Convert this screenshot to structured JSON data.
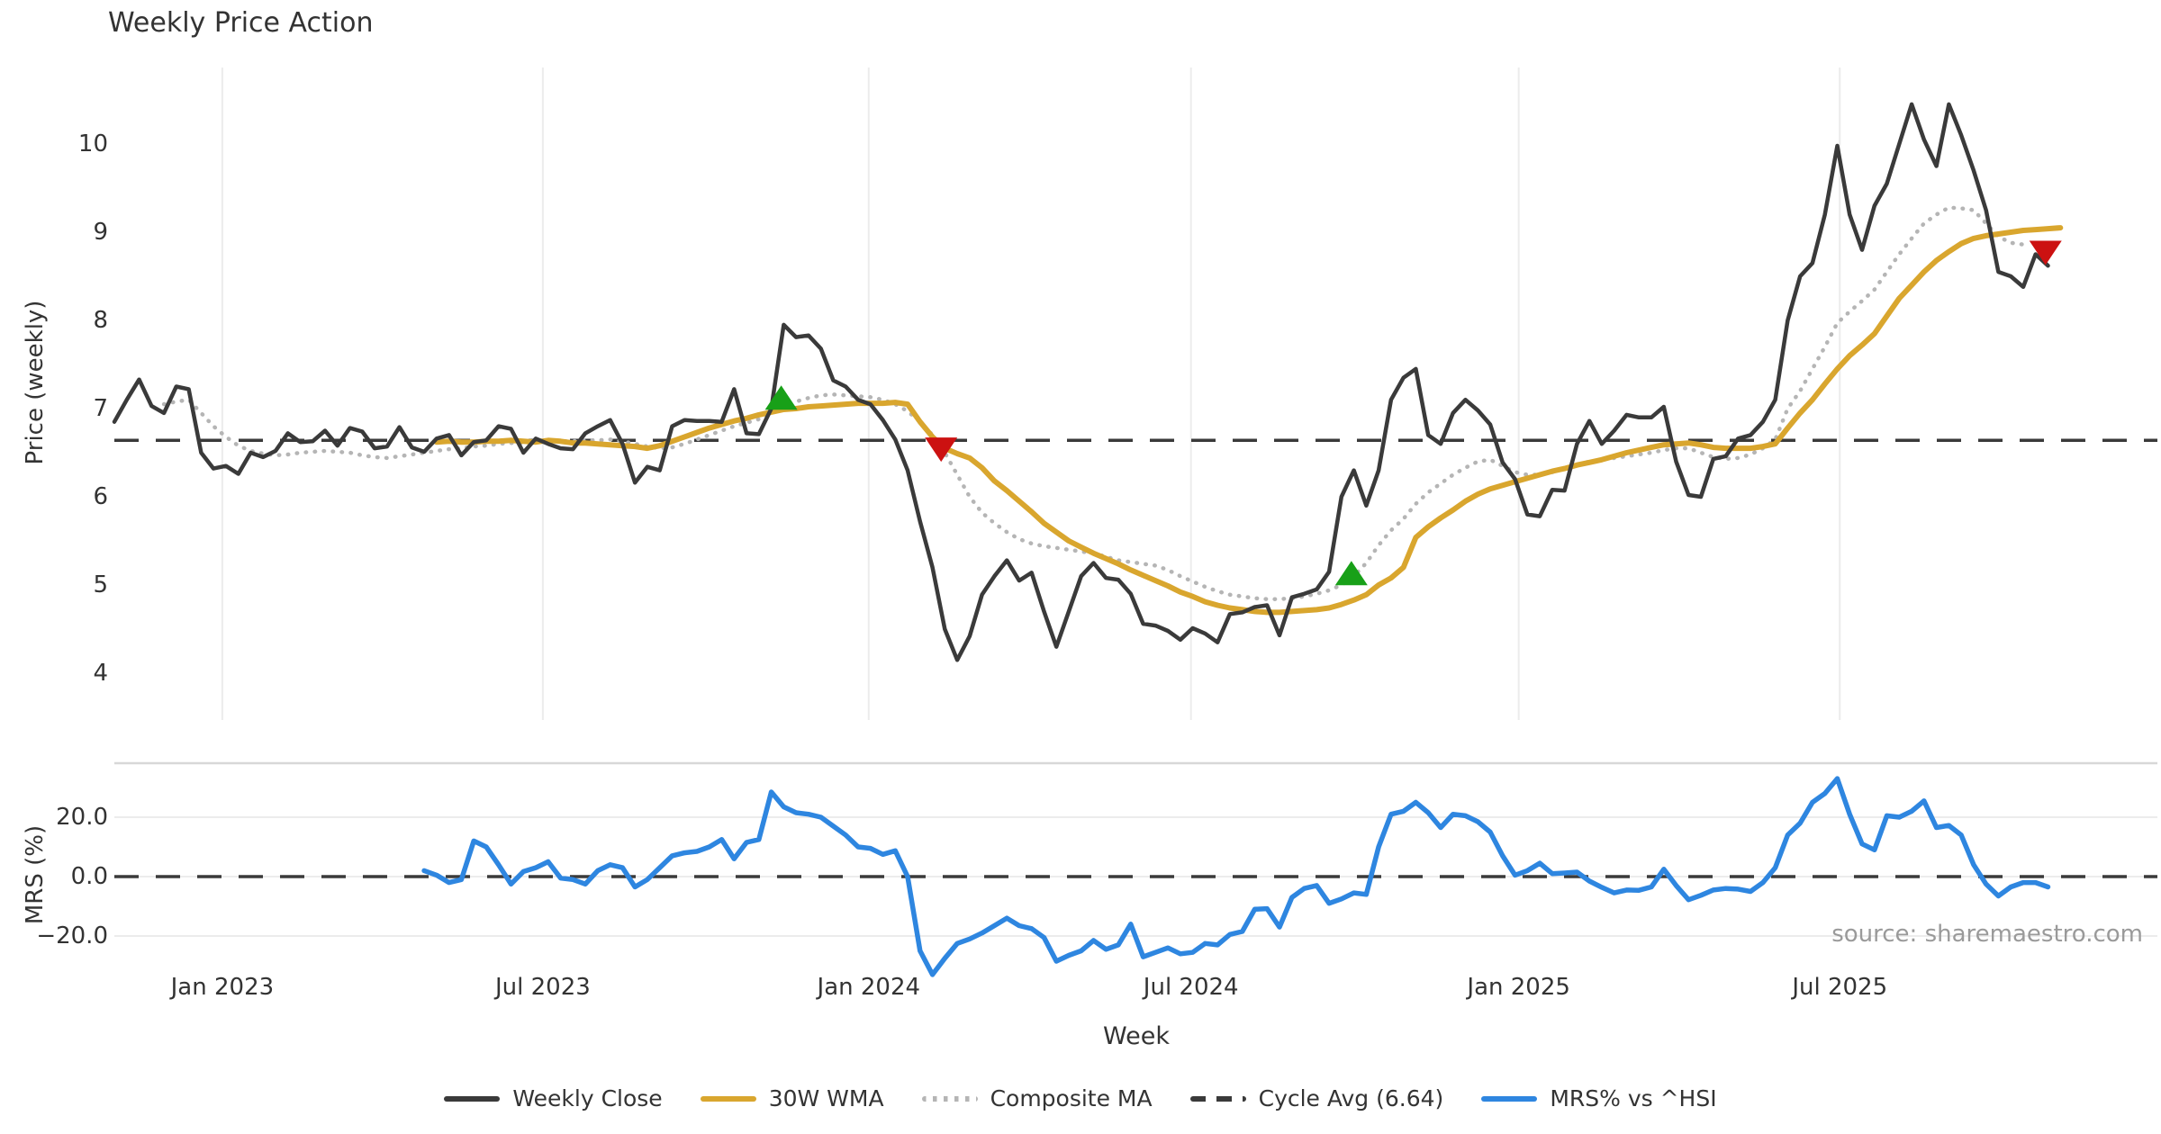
{
  "title": "Weekly Price Action",
  "source": "source: sharemaestro.com",
  "colors": {
    "close": "#3a3a3a",
    "wma": "#d9a62e",
    "composite": "#b5b5b5",
    "mrs": "#2e86e0",
    "buy": "#18a018",
    "sell": "#cc1111",
    "grid": "#ececec",
    "spine": "#d8d8d8",
    "text": "#333333",
    "muted": "#9a9a9a"
  },
  "legend": {
    "items": [
      {
        "label": "Weekly Close",
        "style": "solid",
        "color": "#3a3a3a"
      },
      {
        "label": "30W WMA",
        "style": "solid",
        "color": "#d9a62e"
      },
      {
        "label": "Composite MA",
        "style": "dotted",
        "color": "#b5b5b5"
      },
      {
        "label": "Cycle Avg (6.64)",
        "style": "dashed",
        "color": "#3a3a3a"
      },
      {
        "label": "MRS% vs ^HSI",
        "style": "solid",
        "color": "#2e86e0"
      }
    ]
  },
  "xaxis": {
    "label": "Week",
    "ticks": [
      "Jan 2023",
      "Jul 2023",
      "Jan 2024",
      "Jul 2024",
      "Jan 2025",
      "Jul 2025"
    ],
    "tick_weeks": [
      8.71,
      34.57,
      60.86,
      86.86,
      113.3,
      139.2
    ]
  },
  "chart_data": [
    {
      "type": "line",
      "panel": "price",
      "ylabel": "Price (weekly)",
      "yticks": [
        "4",
        "5",
        "6",
        "7",
        "8",
        "9",
        "10"
      ],
      "ytick_values": [
        4,
        5,
        6,
        7,
        8,
        9,
        10
      ],
      "ylim": [
        3.5,
        10.9
      ],
      "grid": "vertical",
      "cycle_avg": 6.64,
      "series": [
        {
          "name": "Weekly Close",
          "color": "#3a3a3a",
          "style": "solid",
          "width": 4.5,
          "start_week": 0,
          "values": [
            6.85,
            7.1,
            7.33,
            7.03,
            6.95,
            7.25,
            7.22,
            6.5,
            6.32,
            6.35,
            6.26,
            6.5,
            6.45,
            6.52,
            6.72,
            6.62,
            6.63,
            6.75,
            6.58,
            6.78,
            6.74,
            6.55,
            6.57,
            6.79,
            6.56,
            6.51,
            6.66,
            6.7,
            6.47,
            6.62,
            6.64,
            6.8,
            6.77,
            6.5,
            6.66,
            6.6,
            6.55,
            6.54,
            6.72,
            6.8,
            6.87,
            6.6,
            6.16,
            6.34,
            6.3,
            6.8,
            6.87,
            6.86,
            6.86,
            6.85,
            7.22,
            6.72,
            6.71,
            7.0,
            7.95,
            7.81,
            7.83,
            7.68,
            7.32,
            7.25,
            7.1,
            7.05,
            6.87,
            6.65,
            6.3,
            5.72,
            5.2,
            4.5,
            4.15,
            4.42,
            4.89,
            5.1,
            5.28,
            5.05,
            5.14,
            4.7,
            4.3,
            4.7,
            5.1,
            5.25,
            5.08,
            5.06,
            4.9,
            4.56,
            4.54,
            4.48,
            4.38,
            4.51,
            4.45,
            4.35,
            4.67,
            4.69,
            4.75,
            4.77,
            4.43,
            4.86,
            4.9,
            4.95,
            5.15,
            6.0,
            6.3,
            5.9,
            6.3,
            7.1,
            7.35,
            7.45,
            6.7,
            6.6,
            6.95,
            7.1,
            6.98,
            6.82,
            6.39,
            6.2,
            5.8,
            5.78,
            6.08,
            6.07,
            6.6,
            6.86,
            6.6,
            6.75,
            6.93,
            6.9,
            6.9,
            7.02,
            6.4,
            6.02,
            6.0,
            6.43,
            6.46,
            6.66,
            6.7,
            6.85,
            7.1,
            8.0,
            8.5,
            8.65,
            9.2,
            9.98,
            9.2,
            8.8,
            9.3,
            9.55,
            10.0,
            10.45,
            10.05,
            9.75,
            10.45,
            10.1,
            9.7,
            9.25,
            8.55,
            8.5,
            8.38,
            8.75,
            8.62
          ]
        },
        {
          "name": "30W WMA",
          "color": "#d9a62e",
          "style": "solid",
          "width": 6,
          "start_week": 26,
          "values": [
            6.62,
            6.63,
            6.62,
            6.62,
            6.63,
            6.63,
            6.64,
            6.63,
            6.62,
            6.64,
            6.63,
            6.61,
            6.61,
            6.6,
            6.59,
            6.58,
            6.57,
            6.55,
            6.58,
            6.63,
            6.68,
            6.73,
            6.78,
            6.82,
            6.86,
            6.89,
            6.93,
            6.96,
            6.99,
            7.0,
            7.02,
            7.03,
            7.04,
            7.05,
            7.06,
            7.06,
            7.06,
            7.07,
            7.05,
            6.85,
            6.68,
            6.55,
            6.49,
            6.44,
            6.33,
            6.18,
            6.07,
            5.95,
            5.83,
            5.7,
            5.6,
            5.5,
            5.43,
            5.36,
            5.3,
            5.24,
            5.17,
            5.11,
            5.05,
            4.99,
            4.92,
            4.87,
            4.81,
            4.77,
            4.74,
            4.72,
            4.7,
            4.69,
            4.69,
            4.7,
            4.71,
            4.72,
            4.74,
            4.78,
            4.83,
            4.89,
            5.0,
            5.08,
            5.2,
            5.54,
            5.66,
            5.76,
            5.85,
            5.95,
            6.03,
            6.09,
            6.13,
            6.17,
            6.21,
            6.25,
            6.29,
            6.32,
            6.36,
            6.39,
            6.42,
            6.46,
            6.5,
            6.53,
            6.56,
            6.59,
            6.6,
            6.61,
            6.59,
            6.56,
            6.55,
            6.55,
            6.55,
            6.57,
            6.6,
            6.78,
            6.95,
            7.1,
            7.28,
            7.45,
            7.6,
            7.72,
            7.85,
            8.05,
            8.25,
            8.4,
            8.55,
            8.68,
            8.78,
            8.87,
            8.93,
            8.96,
            8.98,
            9.0,
            9.02,
            9.03,
            9.04,
            9.05
          ]
        },
        {
          "name": "Composite MA",
          "color": "#b5b5b5",
          "style": "dotted",
          "width": 4.5,
          "start_week": 4,
          "values": [
            7.05,
            7.08,
            7.1,
            6.95,
            6.8,
            6.68,
            6.58,
            6.52,
            6.49,
            6.47,
            6.48,
            6.5,
            6.51,
            6.52,
            6.51,
            6.5,
            6.47,
            6.45,
            6.44,
            6.46,
            6.48,
            6.5,
            6.52,
            6.54,
            6.55,
            6.57,
            6.58,
            6.6,
            6.61,
            6.61,
            6.62,
            6.62,
            6.63,
            6.63,
            6.64,
            6.64,
            6.65,
            6.63,
            6.6,
            6.57,
            6.55,
            6.56,
            6.6,
            6.65,
            6.7,
            6.75,
            6.8,
            6.84,
            6.88,
            6.95,
            7.02,
            7.08,
            7.12,
            7.15,
            7.16,
            7.15,
            7.14,
            7.13,
            7.1,
            7.05,
            6.97,
            6.85,
            6.7,
            6.5,
            6.25,
            6.0,
            5.82,
            5.7,
            5.6,
            5.52,
            5.47,
            5.44,
            5.42,
            5.4,
            5.38,
            5.36,
            5.32,
            5.28,
            5.26,
            5.24,
            5.22,
            5.17,
            5.1,
            5.04,
            4.98,
            4.93,
            4.89,
            4.87,
            4.85,
            4.84,
            4.84,
            4.85,
            4.87,
            4.9,
            4.94,
            5.0,
            5.1,
            5.25,
            5.45,
            5.62,
            5.75,
            5.92,
            6.05,
            6.15,
            6.25,
            6.33,
            6.4,
            6.42,
            6.35,
            6.28,
            6.25,
            6.25,
            6.28,
            6.32,
            6.36,
            6.4,
            6.42,
            6.44,
            6.46,
            6.48,
            6.5,
            6.53,
            6.55,
            6.55,
            6.5,
            6.45,
            6.43,
            6.44,
            6.48,
            6.55,
            6.65,
            7.0,
            7.2,
            7.45,
            7.7,
            7.97,
            8.1,
            8.22,
            8.35,
            8.55,
            8.75,
            8.93,
            9.1,
            9.2,
            9.28,
            9.27,
            9.25,
            9.1,
            8.95,
            8.88,
            8.86
          ]
        }
      ],
      "signals": [
        {
          "dir": "buy",
          "week": 53.8,
          "price": 7.11
        },
        {
          "dir": "sell",
          "week": 66.7,
          "price": 6.55
        },
        {
          "dir": "buy",
          "week": 99.8,
          "price": 5.12
        },
        {
          "dir": "sell",
          "week": 155.8,
          "price": 8.78
        }
      ]
    },
    {
      "type": "line",
      "panel": "mrs",
      "ylabel": "MRS (%)",
      "yticks": [
        "20.0",
        "0.0",
        "−20.0"
      ],
      "ytick_values": [
        20,
        0,
        -20
      ],
      "ylim": [
        -38,
        38
      ],
      "grid": "horizontal",
      "zero_line": 0,
      "series": [
        {
          "name": "MRS% vs ^HSI",
          "color": "#2e86e0",
          "style": "solid",
          "width": 5.5,
          "start_week": 25,
          "values": [
            2.0,
            0.5,
            -2.0,
            -1.0,
            12.0,
            10.0,
            4.0,
            -2.5,
            1.7,
            3.0,
            5.0,
            -0.5,
            -1.0,
            -2.5,
            2.0,
            4.0,
            3.0,
            -3.5,
            -1.0,
            3.0,
            7.0,
            8.0,
            8.5,
            10.0,
            12.5,
            6.0,
            11.5,
            12.5,
            28.5,
            23.5,
            21.5,
            21.0,
            20.0,
            17.0,
            14.0,
            10.0,
            9.5,
            7.5,
            8.7,
            0.0,
            -25.0,
            -33.0,
            -27.5,
            -22.5,
            -21.0,
            -19.0,
            -16.5,
            -14.0,
            -16.5,
            -17.5,
            -20.5,
            -28.5,
            -26.5,
            -25.0,
            -21.5,
            -24.5,
            -23.0,
            -16.0,
            -27.0,
            -25.5,
            -24.0,
            -26.0,
            -25.5,
            -22.5,
            -23.0,
            -19.5,
            -18.5,
            -11.0,
            -10.8,
            -17.0,
            -7.0,
            -4.0,
            -3.0,
            -9.0,
            -7.5,
            -5.5,
            -6.0,
            10.0,
            21.0,
            22.0,
            25.0,
            21.5,
            16.5,
            21.0,
            20.5,
            18.5,
            15.0,
            7.0,
            0.5,
            2.0,
            4.5,
            1.0,
            1.2,
            1.5,
            -1.5,
            -3.6,
            -5.5,
            -4.5,
            -4.6,
            -3.5,
            2.5,
            -3.0,
            -7.8,
            -6.3,
            -4.5,
            -4.0,
            -4.2,
            -5.0,
            -2.0,
            3.0,
            14.0,
            18.0,
            25.0,
            28.0,
            33.0,
            21.0,
            11.0,
            9.0,
            20.5,
            20.0,
            22.0,
            25.5,
            16.5,
            17.2,
            14.0,
            4.0,
            -2.5,
            -6.5,
            -3.5,
            -2.0,
            -2.0,
            -3.5
          ]
        }
      ]
    }
  ]
}
